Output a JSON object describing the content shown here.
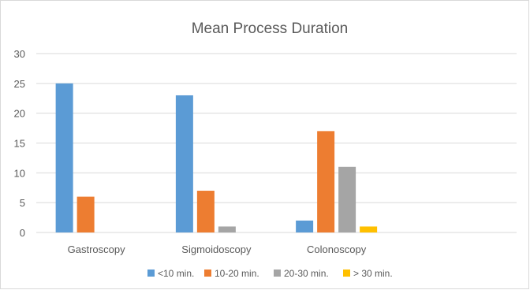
{
  "chart_data": {
    "type": "bar",
    "title": "Mean Process Duration",
    "categories": [
      "Gastroscopy",
      "Sigmoidoscopy",
      "Colonoscopy",
      ""
    ],
    "series": [
      {
        "name": "<10 min.",
        "color": "#5b9bd5",
        "values": [
          25,
          23,
          2,
          0
        ]
      },
      {
        "name": "10-20 min.",
        "color": "#ed7d31",
        "values": [
          6,
          7,
          17,
          0
        ]
      },
      {
        "name": "20-30 min.",
        "color": "#a5a5a5",
        "values": [
          0,
          1,
          11,
          0
        ]
      },
      {
        "name": "> 30 min.",
        "color": "#ffc000",
        "values": [
          0,
          0,
          1,
          0
        ]
      }
    ],
    "ylim": [
      0,
      30
    ],
    "yticks": [
      0,
      5,
      10,
      15,
      20,
      25,
      30
    ],
    "grid": true,
    "legend_position": "bottom"
  }
}
